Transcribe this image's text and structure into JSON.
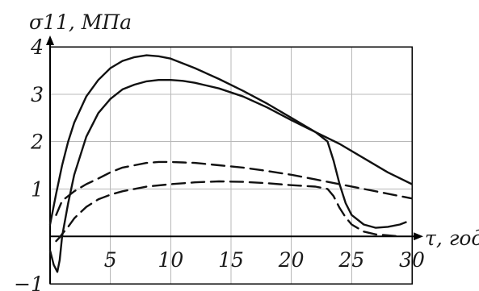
{
  "chart_data": {
    "type": "line",
    "title": "",
    "ylabel": "σ11, МПа",
    "xlabel": "τ, год",
    "xlim": [
      0,
      30
    ],
    "ylim": [
      -1,
      4
    ],
    "x_ticks": [
      5,
      10,
      15,
      20,
      25,
      30
    ],
    "y_ticks": [
      -1,
      1,
      2,
      3,
      4
    ],
    "grid": true,
    "legend": "none",
    "series": [
      {
        "style": "solid",
        "x": [
          0,
          0.5,
          1,
          1.5,
          2,
          3,
          4,
          5,
          6,
          7,
          8,
          9,
          10,
          11,
          12,
          14,
          16,
          18,
          20,
          22,
          24,
          26,
          28,
          30
        ],
        "y": [
          0.25,
          0.9,
          1.5,
          2.0,
          2.4,
          2.95,
          3.3,
          3.55,
          3.7,
          3.78,
          3.82,
          3.8,
          3.75,
          3.65,
          3.55,
          3.32,
          3.07,
          2.8,
          2.5,
          2.2,
          1.95,
          1.65,
          1.35,
          1.1
        ]
      },
      {
        "style": "solid",
        "x": [
          0,
          0.3,
          0.6,
          0.8,
          1,
          1.5,
          2,
          3,
          4,
          5,
          6,
          7,
          8,
          9,
          10,
          11,
          12,
          14,
          16,
          18,
          20,
          22,
          23,
          23.5,
          24,
          24.5,
          25,
          26,
          27,
          28,
          29,
          29.5
        ],
        "y": [
          -0.3,
          -0.6,
          -0.75,
          -0.5,
          0.0,
          0.7,
          1.3,
          2.1,
          2.6,
          2.9,
          3.1,
          3.2,
          3.27,
          3.3,
          3.3,
          3.28,
          3.24,
          3.12,
          2.95,
          2.72,
          2.45,
          2.2,
          2.0,
          1.6,
          1.1,
          0.7,
          0.45,
          0.25,
          0.18,
          0.2,
          0.25,
          0.3
        ]
      },
      {
        "style": "dashed",
        "x": [
          0.5,
          1,
          2,
          3,
          4,
          5,
          6,
          7,
          8,
          9,
          10,
          11,
          12,
          14,
          16,
          18,
          20,
          22,
          24,
          26,
          28,
          30
        ],
        "y": [
          0.45,
          0.75,
          0.95,
          1.1,
          1.22,
          1.35,
          1.45,
          1.5,
          1.55,
          1.57,
          1.57,
          1.56,
          1.55,
          1.5,
          1.45,
          1.38,
          1.3,
          1.2,
          1.1,
          1.0,
          0.9,
          0.8
        ]
      },
      {
        "style": "dashed",
        "x": [
          0.5,
          0.8,
          1,
          1.5,
          2,
          2.5,
          3,
          4,
          5,
          6,
          7,
          8,
          10,
          12,
          14,
          16,
          18,
          20,
          22,
          23,
          23.5,
          24,
          24.5,
          25,
          26,
          27,
          28,
          29
        ],
        "y": [
          -0.1,
          -0.02,
          0.05,
          0.2,
          0.38,
          0.5,
          0.62,
          0.78,
          0.88,
          0.95,
          1.0,
          1.05,
          1.1,
          1.14,
          1.16,
          1.15,
          1.12,
          1.08,
          1.05,
          1.0,
          0.85,
          0.6,
          0.4,
          0.25,
          0.1,
          0.04,
          0.02,
          0.0
        ]
      }
    ]
  }
}
